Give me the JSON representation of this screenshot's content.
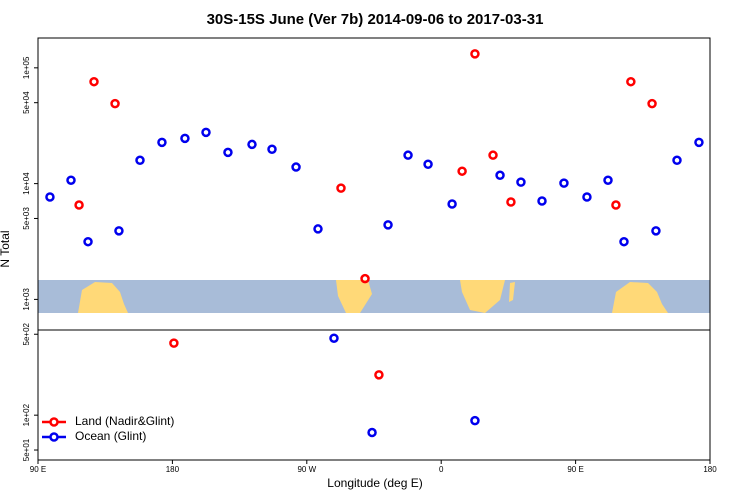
{
  "chart_data": {
    "type": "scatter",
    "title": "30S-15S June (Ver 7b)   2014-09-06 to 2017-03-31",
    "x_label": "Longitude (deg E)",
    "y_label": "N Total",
    "y_scale": "log",
    "xlim": [
      90,
      540
    ],
    "xticks": [
      {
        "value": 90,
        "label": "90 E"
      },
      {
        "value": 180,
        "label": "180"
      },
      {
        "value": 270,
        "label": "90 W"
      },
      {
        "value": 360,
        "label": "0"
      },
      {
        "value": 450,
        "label": "90 E"
      },
      {
        "value": 540,
        "label": "180"
      }
    ],
    "ylim": [
      41,
      181000
    ],
    "yticks": [
      {
        "value": 100000,
        "label": "1e+05"
      },
      {
        "value": 50000,
        "label": "5e+04"
      },
      {
        "value": 10000,
        "label": "1e+04"
      },
      {
        "value": 5000,
        "label": "5e+03"
      },
      {
        "value": 1000,
        "label": "1e+03"
      },
      {
        "value": 500,
        "label": "5e+02"
      },
      {
        "value": 100,
        "label": "1e+02"
      },
      {
        "value": 50,
        "label": "5e+01"
      }
    ],
    "legend": "bottom-left",
    "series": [
      {
        "name": "Land (Nadir&Glint)",
        "color": "#ff0000",
        "x": [
          117.5,
          127.5,
          141.6,
          181,
          292.9,
          309,
          318.3,
          374,
          382.6,
          394.7,
          406.7,
          477,
          487,
          501.2
        ],
        "values": [
          6530,
          75900,
          49100,
          419,
          9140,
          1510,
          223,
          12800,
          132000,
          17600,
          6940,
          6530,
          75900,
          49100
        ]
      },
      {
        "name": "Ocean (Glint)",
        "color": "#0000ee",
        "x": [
          98,
          112.1,
          123.5,
          144.2,
          158.3,
          173,
          188.4,
          202.5,
          217.2,
          233.3,
          246.7,
          262.8,
          277.5,
          288.2,
          313.7,
          324.4,
          337.8,
          351.2,
          367.3,
          382.6,
          399.4,
          413.4,
          427.5,
          442.2,
          457.6,
          471.7,
          482.4,
          503.8,
          517.9,
          532.6
        ],
        "values": [
          7660,
          10700,
          3150,
          3910,
          15900,
          22700,
          24600,
          27700,
          18600,
          21800,
          19800,
          13900,
          4060,
          462,
          70.8,
          4400,
          17600,
          14700,
          6670,
          89.7,
          11800,
          10300,
          7080,
          10100,
          7660,
          10700,
          3150,
          3910,
          15900,
          22700
        ]
      }
    ]
  }
}
